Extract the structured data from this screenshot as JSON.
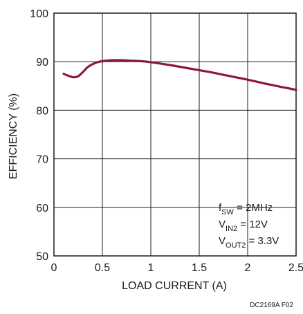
{
  "chart_data": {
    "type": "line",
    "xlabel": "LOAD CURRENT (A)",
    "ylabel": "EFFICIENCY (%)",
    "xlim": [
      0,
      2.5
    ],
    "ylim": [
      50,
      100
    ],
    "xticks": [
      0,
      0.5,
      1,
      1.5,
      2,
      2.5
    ],
    "xtick_labels": [
      "0",
      "0.5",
      "1",
      "1.5",
      "2",
      "2.5"
    ],
    "yticks": [
      50,
      60,
      70,
      80,
      90,
      100
    ],
    "ytick_labels": [
      "50",
      "60",
      "70",
      "80",
      "90",
      "100"
    ],
    "grid": true,
    "series": [
      {
        "color": "#8b1a3a",
        "x": [
          0.1,
          0.15,
          0.2,
          0.25,
          0.3,
          0.35,
          0.4,
          0.45,
          0.5,
          0.6,
          0.7,
          0.8,
          0.9,
          1.0,
          1.2,
          1.4,
          1.6,
          1.8,
          2.0,
          2.2,
          2.4,
          2.5
        ],
        "y": [
          87.5,
          87.1,
          86.8,
          87.0,
          87.9,
          88.9,
          89.5,
          89.9,
          90.1,
          90.3,
          90.3,
          90.2,
          90.1,
          89.9,
          89.3,
          88.6,
          87.9,
          87.1,
          86.3,
          85.4,
          84.6,
          84.2
        ]
      }
    ],
    "annotation": {
      "lines": [
        {
          "main": "f",
          "sub": "SW",
          "rest": " = 2MHz"
        },
        {
          "main": "V",
          "sub": "IN2",
          "rest": " = 12V"
        },
        {
          "main": "V",
          "sub": "OUT2",
          "rest": " = 3.3V"
        }
      ]
    }
  },
  "figure_code": "DC2169A F02"
}
